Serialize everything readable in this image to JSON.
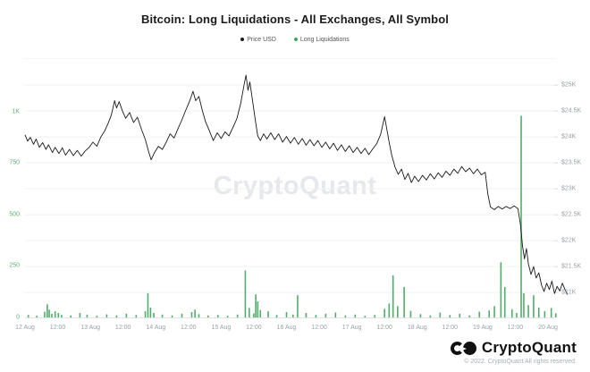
{
  "header": {
    "title": "Bitcoin: Long Liquidations - All Exchanges, All Symbol"
  },
  "legend": {
    "items": [
      {
        "label": "Price USD",
        "color": "#1a1a1a"
      },
      {
        "label": "Long Liquidations",
        "color": "#3fa45c"
      }
    ]
  },
  "watermark": "CryptoQuant",
  "footer": {
    "brand": "CryptoQuant",
    "logo_icon": "cryptoquant-logo",
    "copyright": "© 2022. CryptoQuant All rights reserved."
  },
  "colors": {
    "price_line": "#1a1a1a",
    "liquidation_bar": "#3fa45c",
    "axis_text": "#9aa0a6",
    "left_axis_text": "#5fae76",
    "grid": "#f0f0f1",
    "axis_line": "#e2e2e4",
    "watermark": "#e6e8eb"
  },
  "chart_data": {
    "type": "mixed",
    "title": "Bitcoin: Long Liquidations - All Exchanges, All Symbol",
    "x_axis": {
      "unit": "days since 12 Aug 00:00",
      "domain": [
        0,
        8
      ],
      "labels": [
        {
          "t": 0.0,
          "label": "12 Aug"
        },
        {
          "t": 0.5,
          "label": "12:00"
        },
        {
          "t": 1.0,
          "label": "13 Aug"
        },
        {
          "t": 1.5,
          "label": "12:00"
        },
        {
          "t": 2.0,
          "label": "14 Aug"
        },
        {
          "t": 2.5,
          "label": "12:00"
        },
        {
          "t": 3.0,
          "label": "15 Aug"
        },
        {
          "t": 3.5,
          "label": "12:00"
        },
        {
          "t": 4.0,
          "label": "16 Aug"
        },
        {
          "t": 4.5,
          "label": "12:00"
        },
        {
          "t": 5.0,
          "label": "17 Aug"
        },
        {
          "t": 5.5,
          "label": "12:00"
        },
        {
          "t": 6.0,
          "label": "18 Aug"
        },
        {
          "t": 6.5,
          "label": "12:00"
        },
        {
          "t": 7.0,
          "label": "19 Aug"
        },
        {
          "t": 7.5,
          "label": "12:00"
        },
        {
          "t": 8.0,
          "label": "20 Aug"
        }
      ]
    },
    "y_left": {
      "name": "Long Liquidations",
      "range": [
        0,
        1260
      ],
      "ticks": [
        {
          "v": 0,
          "label": "0"
        },
        {
          "v": 250,
          "label": "250"
        },
        {
          "v": 500,
          "label": "500"
        },
        {
          "v": 750,
          "label": "750"
        },
        {
          "v": 1000,
          "label": "1K"
        }
      ]
    },
    "y_right": {
      "name": "Price USD",
      "range": [
        20520,
        25520
      ],
      "ticks": [
        {
          "v": 21000,
          "label": "$21K"
        },
        {
          "v": 21500,
          "label": "$21.5K"
        },
        {
          "v": 22000,
          "label": "$22K"
        },
        {
          "v": 22500,
          "label": "$22.5K"
        },
        {
          "v": 23000,
          "label": "$23K"
        },
        {
          "v": 23500,
          "label": "$23.5K"
        },
        {
          "v": 24000,
          "label": "$24K"
        },
        {
          "v": 24500,
          "label": "$24.5K"
        },
        {
          "v": 25000,
          "label": "$25K"
        }
      ]
    },
    "series": [
      {
        "name": "Long Liquidations",
        "type": "bar",
        "axis": "left",
        "color": "#3fa45c",
        "points": [
          [
            0.05,
            12
          ],
          [
            0.18,
            8
          ],
          [
            0.3,
            28
          ],
          [
            0.34,
            64
          ],
          [
            0.37,
            38
          ],
          [
            0.41,
            18
          ],
          [
            0.46,
            30
          ],
          [
            0.51,
            22
          ],
          [
            0.56,
            12
          ],
          [
            0.7,
            10
          ],
          [
            0.84,
            22
          ],
          [
            0.95,
            14
          ],
          [
            1.1,
            8
          ],
          [
            1.25,
            15
          ],
          [
            1.4,
            10
          ],
          [
            1.55,
            18
          ],
          [
            1.7,
            12
          ],
          [
            1.84,
            30
          ],
          [
            1.88,
            118
          ],
          [
            1.92,
            48
          ],
          [
            1.97,
            22
          ],
          [
            2.1,
            14
          ],
          [
            2.25,
            10
          ],
          [
            2.4,
            18
          ],
          [
            2.55,
            26
          ],
          [
            2.6,
            38
          ],
          [
            2.66,
            16
          ],
          [
            2.8,
            10
          ],
          [
            2.95,
            12
          ],
          [
            3.1,
            8
          ],
          [
            3.25,
            14
          ],
          [
            3.37,
            228
          ],
          [
            3.43,
            46
          ],
          [
            3.5,
            20
          ],
          [
            3.53,
            112
          ],
          [
            3.56,
            78
          ],
          [
            3.6,
            36
          ],
          [
            3.72,
            30
          ],
          [
            3.85,
            12
          ],
          [
            4.0,
            26
          ],
          [
            4.1,
            14
          ],
          [
            4.17,
            108
          ],
          [
            4.3,
            22
          ],
          [
            4.45,
            12
          ],
          [
            4.6,
            18
          ],
          [
            4.75,
            24
          ],
          [
            4.9,
            10
          ],
          [
            5.05,
            14
          ],
          [
            5.2,
            8
          ],
          [
            5.35,
            12
          ],
          [
            5.5,
            42
          ],
          [
            5.57,
            68
          ],
          [
            5.63,
            205
          ],
          [
            5.7,
            55
          ],
          [
            5.8,
            148
          ],
          [
            5.9,
            32
          ],
          [
            6.05,
            16
          ],
          [
            6.2,
            10
          ],
          [
            6.35,
            24
          ],
          [
            6.5,
            12
          ],
          [
            6.65,
            18
          ],
          [
            6.8,
            10
          ],
          [
            6.95,
            28
          ],
          [
            7.1,
            34
          ],
          [
            7.18,
            55
          ],
          [
            7.28,
            268
          ],
          [
            7.34,
            148
          ],
          [
            7.45,
            40
          ],
          [
            7.52,
            22
          ],
          [
            7.59,
            980
          ],
          [
            7.63,
            118
          ],
          [
            7.7,
            60
          ],
          [
            7.78,
            108
          ],
          [
            7.86,
            48
          ],
          [
            7.95,
            30
          ],
          [
            8.05,
            46
          ],
          [
            8.12,
            20
          ]
        ]
      },
      {
        "name": "Price USD",
        "type": "line",
        "axis": "right",
        "color": "#1a1a1a",
        "points": [
          [
            0.0,
            24040
          ],
          [
            0.04,
            23920
          ],
          [
            0.08,
            23990
          ],
          [
            0.13,
            23860
          ],
          [
            0.17,
            23960
          ],
          [
            0.22,
            23800
          ],
          [
            0.27,
            23890
          ],
          [
            0.32,
            23760
          ],
          [
            0.36,
            23850
          ],
          [
            0.42,
            23700
          ],
          [
            0.46,
            23800
          ],
          [
            0.52,
            23680
          ],
          [
            0.57,
            23790
          ],
          [
            0.62,
            23650
          ],
          [
            0.68,
            23760
          ],
          [
            0.74,
            23640
          ],
          [
            0.8,
            23740
          ],
          [
            0.86,
            23630
          ],
          [
            0.92,
            23730
          ],
          [
            0.98,
            23800
          ],
          [
            1.04,
            23900
          ],
          [
            1.1,
            23820
          ],
          [
            1.16,
            24000
          ],
          [
            1.22,
            24120
          ],
          [
            1.27,
            24260
          ],
          [
            1.32,
            24420
          ],
          [
            1.37,
            24700
          ],
          [
            1.4,
            24560
          ],
          [
            1.44,
            24680
          ],
          [
            1.49,
            24500
          ],
          [
            1.54,
            24360
          ],
          [
            1.6,
            24470
          ],
          [
            1.66,
            24280
          ],
          [
            1.72,
            24380
          ],
          [
            1.78,
            24150
          ],
          [
            1.84,
            23950
          ],
          [
            1.89,
            23720
          ],
          [
            1.93,
            23560
          ],
          [
            1.98,
            23700
          ],
          [
            2.04,
            23820
          ],
          [
            2.1,
            23760
          ],
          [
            2.16,
            23900
          ],
          [
            2.22,
            24060
          ],
          [
            2.28,
            23980
          ],
          [
            2.34,
            24160
          ],
          [
            2.4,
            24330
          ],
          [
            2.46,
            24520
          ],
          [
            2.52,
            24700
          ],
          [
            2.57,
            24880
          ],
          [
            2.61,
            24700
          ],
          [
            2.66,
            24780
          ],
          [
            2.71,
            24520
          ],
          [
            2.76,
            24300
          ],
          [
            2.82,
            24120
          ],
          [
            2.88,
            23930
          ],
          [
            2.94,
            24080
          ],
          [
            3.0,
            23970
          ],
          [
            3.06,
            24100
          ],
          [
            3.12,
            24020
          ],
          [
            3.18,
            24180
          ],
          [
            3.24,
            24350
          ],
          [
            3.3,
            24650
          ],
          [
            3.35,
            25000
          ],
          [
            3.38,
            25190
          ],
          [
            3.41,
            24900
          ],
          [
            3.44,
            25060
          ],
          [
            3.48,
            24700
          ],
          [
            3.52,
            24350
          ],
          [
            3.56,
            24020
          ],
          [
            3.6,
            23930
          ],
          [
            3.65,
            24060
          ],
          [
            3.7,
            23960
          ],
          [
            3.76,
            24080
          ],
          [
            3.82,
            23950
          ],
          [
            3.88,
            24060
          ],
          [
            3.94,
            23900
          ],
          [
            4.0,
            24010
          ],
          [
            4.06,
            23880
          ],
          [
            4.12,
            23990
          ],
          [
            4.18,
            23860
          ],
          [
            4.24,
            23970
          ],
          [
            4.3,
            23840
          ],
          [
            4.36,
            23950
          ],
          [
            4.42,
            23830
          ],
          [
            4.48,
            23930
          ],
          [
            4.54,
            23800
          ],
          [
            4.6,
            23900
          ],
          [
            4.66,
            23770
          ],
          [
            4.72,
            23880
          ],
          [
            4.78,
            23740
          ],
          [
            4.84,
            23850
          ],
          [
            4.9,
            23720
          ],
          [
            4.96,
            23830
          ],
          [
            5.02,
            23700
          ],
          [
            5.08,
            23800
          ],
          [
            5.14,
            23680
          ],
          [
            5.2,
            23780
          ],
          [
            5.26,
            23660
          ],
          [
            5.32,
            23770
          ],
          [
            5.38,
            23870
          ],
          [
            5.44,
            24050
          ],
          [
            5.5,
            24390
          ],
          [
            5.53,
            24180
          ],
          [
            5.57,
            23900
          ],
          [
            5.61,
            23650
          ],
          [
            5.66,
            23420
          ],
          [
            5.71,
            23280
          ],
          [
            5.76,
            23380
          ],
          [
            5.81,
            23180
          ],
          [
            5.86,
            23300
          ],
          [
            5.91,
            23120
          ],
          [
            5.96,
            23240
          ],
          [
            6.02,
            23140
          ],
          [
            6.08,
            23260
          ],
          [
            6.14,
            23170
          ],
          [
            6.2,
            23290
          ],
          [
            6.26,
            23190
          ],
          [
            6.32,
            23310
          ],
          [
            6.38,
            23220
          ],
          [
            6.44,
            23340
          ],
          [
            6.5,
            23260
          ],
          [
            6.56,
            23380
          ],
          [
            6.62,
            23300
          ],
          [
            6.68,
            23430
          ],
          [
            6.74,
            23330
          ],
          [
            6.8,
            23400
          ],
          [
            6.86,
            23290
          ],
          [
            6.92,
            23380
          ],
          [
            6.98,
            23270
          ],
          [
            7.04,
            23320
          ],
          [
            7.08,
            22900
          ],
          [
            7.12,
            22650
          ],
          [
            7.18,
            22600
          ],
          [
            7.24,
            22660
          ],
          [
            7.3,
            22610
          ],
          [
            7.36,
            22660
          ],
          [
            7.42,
            22620
          ],
          [
            7.48,
            22670
          ],
          [
            7.54,
            22620
          ],
          [
            7.58,
            22300
          ],
          [
            7.61,
            21900
          ],
          [
            7.64,
            21650
          ],
          [
            7.67,
            21850
          ],
          [
            7.7,
            21550
          ],
          [
            7.74,
            21350
          ],
          [
            7.78,
            21500
          ],
          [
            7.82,
            21280
          ],
          [
            7.86,
            21380
          ],
          [
            7.9,
            21150
          ],
          [
            7.94,
            21020
          ],
          [
            7.98,
            21180
          ],
          [
            8.02,
            21060
          ],
          [
            8.06,
            21220
          ],
          [
            8.1,
            20980
          ],
          [
            8.14,
            21120
          ],
          [
            8.18,
            21030
          ],
          [
            8.22,
            21180
          ],
          [
            8.26,
            21060
          ],
          [
            8.3,
            20960
          ]
        ]
      }
    ],
    "layout": {
      "grid": true,
      "legend_position": "top-center",
      "watermark": "CryptoQuant"
    }
  }
}
